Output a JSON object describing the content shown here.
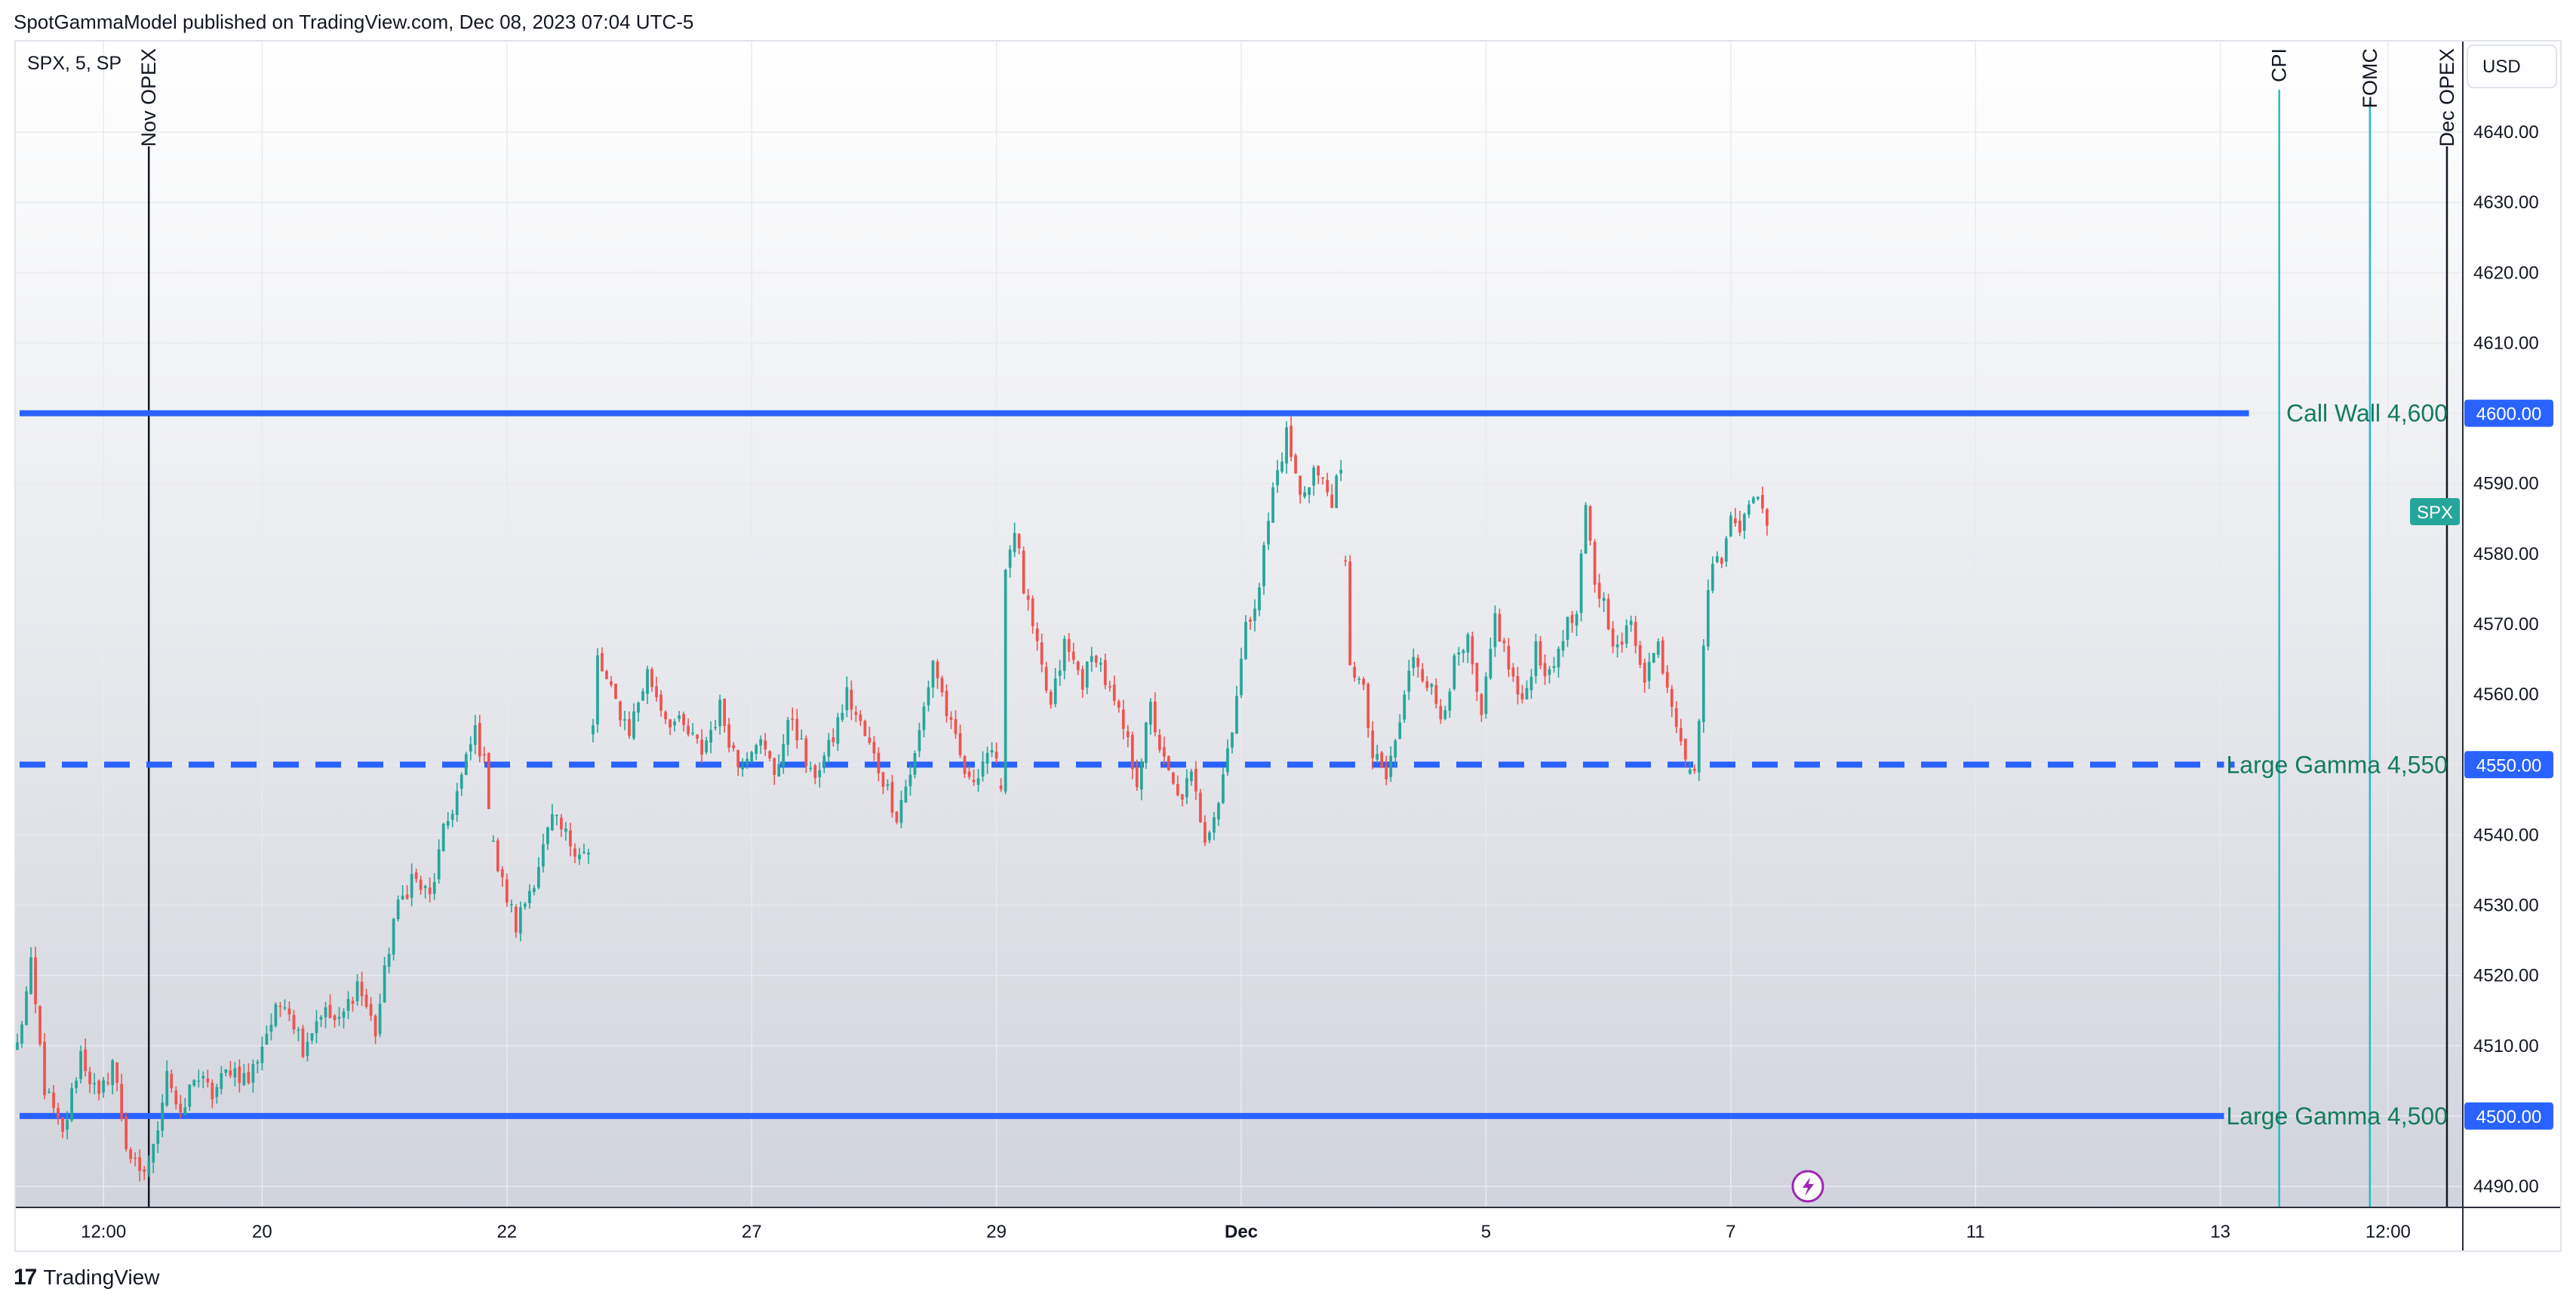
{
  "header": {
    "publisher_line": "SpotGammaModel published on TradingView.com, Dec 08, 2023 07:04 UTC-5"
  },
  "chart_info": {
    "symbol_line": "SPX, 5, SP",
    "currency": "USD",
    "symbol_badge": "SPX",
    "symbol_badge_color": "#26a69a"
  },
  "footer": {
    "logo_text": "17",
    "brand_text": "TradingView"
  },
  "colors": {
    "up_candle": "#26a69a",
    "down_candle": "#ef5350",
    "level_line": "#2962ff",
    "level_label_text": "#167a5e",
    "event_line_cyan": "#22bcc8",
    "event_line_black": "#131722",
    "gradient_top": "#ffffff",
    "gradient_bottom": "#d1d4dc"
  },
  "chart_data": {
    "type": "candlestick",
    "title": "",
    "ylim": [
      4487,
      4653
    ],
    "yticks": [
      4490,
      4500,
      4510,
      4520,
      4530,
      4540,
      4550,
      4560,
      4570,
      4580,
      4590,
      4600,
      4610,
      4620,
      4630,
      4640
    ],
    "grid": true,
    "x_tick_labels": [
      {
        "label": "12:00",
        "index": 19,
        "bold": false
      },
      {
        "label": "20",
        "index": 54,
        "bold": false
      },
      {
        "label": "22",
        "index": 108,
        "bold": false
      },
      {
        "label": "27",
        "index": 162,
        "bold": false
      },
      {
        "label": "29",
        "index": 216,
        "bold": false
      },
      {
        "label": "Dec",
        "index": 270,
        "bold": true
      },
      {
        "label": "5",
        "index": 324,
        "bold": false
      },
      {
        "label": "7",
        "index": 378,
        "bold": false
      },
      {
        "label": "11",
        "index": 432,
        "bold": false
      },
      {
        "label": "13",
        "index": 486,
        "bold": false
      },
      {
        "label": "12:00",
        "index": 523,
        "bold": false
      }
    ],
    "series": [
      {
        "name": "SPX",
        "anchors": [
          [
            0,
            4510
          ],
          [
            3,
            4521
          ],
          [
            6,
            4504
          ],
          [
            10,
            4497
          ],
          [
            14,
            4509
          ],
          [
            18,
            4502
          ],
          [
            21,
            4508
          ],
          [
            24,
            4496
          ],
          [
            27,
            4491
          ],
          [
            30,
            4495
          ],
          [
            33,
            4507
          ],
          [
            36,
            4499
          ],
          [
            39,
            4506
          ],
          [
            43,
            4503
          ],
          [
            47,
            4507
          ],
          [
            51,
            4505
          ],
          [
            55,
            4512
          ],
          [
            59,
            4517
          ],
          [
            63,
            4510
          ],
          [
            67,
            4515
          ],
          [
            71,
            4513
          ],
          [
            75,
            4519
          ],
          [
            79,
            4512
          ],
          [
            83,
            4528
          ],
          [
            87,
            4534
          ],
          [
            91,
            4531
          ],
          [
            94,
            4540
          ],
          [
            98,
            4548
          ],
          [
            101,
            4555
          ],
          [
            103,
            4550
          ],
          [
            106,
            4535
          ],
          [
            110,
            4527
          ],
          [
            114,
            4534
          ],
          [
            118,
            4542
          ],
          [
            122,
            4539
          ],
          [
            126,
            4537
          ],
          [
            127,
            4555
          ],
          [
            128,
            4565
          ],
          [
            131,
            4560
          ],
          [
            135,
            4555
          ],
          [
            139,
            4563
          ],
          [
            143,
            4557
          ],
          [
            147,
            4555
          ],
          [
            151,
            4552
          ],
          [
            155,
            4558
          ],
          [
            159,
            4550
          ],
          [
            163,
            4554
          ],
          [
            167,
            4549
          ],
          [
            171,
            4557
          ],
          [
            175,
            4548
          ],
          [
            179,
            4552
          ],
          [
            183,
            4560
          ],
          [
            187,
            4554
          ],
          [
            191,
            4548
          ],
          [
            194,
            4543
          ],
          [
            198,
            4551
          ],
          [
            202,
            4565
          ],
          [
            206,
            4555
          ],
          [
            210,
            4547
          ],
          [
            214,
            4552
          ],
          [
            217,
            4548
          ],
          [
            218,
            4578
          ],
          [
            220,
            4584
          ],
          [
            222,
            4575
          ],
          [
            225,
            4566
          ],
          [
            228,
            4558
          ],
          [
            231,
            4567
          ],
          [
            235,
            4562
          ],
          [
            238,
            4566
          ],
          [
            241,
            4560
          ],
          [
            244,
            4555
          ],
          [
            247,
            4548
          ],
          [
            250,
            4558
          ],
          [
            253,
            4550
          ],
          [
            256,
            4545
          ],
          [
            259,
            4548
          ],
          [
            262,
            4540
          ],
          [
            265,
            4545
          ],
          [
            268,
            4556
          ],
          [
            271,
            4569
          ],
          [
            274,
            4576
          ],
          [
            277,
            4589
          ],
          [
            280,
            4597
          ],
          [
            283,
            4588
          ],
          [
            286,
            4592
          ],
          [
            290,
            4588
          ],
          [
            292,
            4591
          ],
          [
            294,
            4565
          ],
          [
            297,
            4560
          ],
          [
            299,
            4551
          ],
          [
            302,
            4548
          ],
          [
            305,
            4556
          ],
          [
            308,
            4566
          ],
          [
            311,
            4562
          ],
          [
            314,
            4557
          ],
          [
            317,
            4564
          ],
          [
            320,
            4567
          ],
          [
            323,
            4556
          ],
          [
            326,
            4571
          ],
          [
            329,
            4564
          ],
          [
            332,
            4558
          ],
          [
            335,
            4567
          ],
          [
            338,
            4562
          ],
          [
            341,
            4569
          ],
          [
            344,
            4571
          ],
          [
            346,
            4586
          ],
          [
            348,
            4576
          ],
          [
            350,
            4573
          ],
          [
            353,
            4566
          ],
          [
            356,
            4570
          ],
          [
            359,
            4563
          ],
          [
            362,
            4567
          ],
          [
            365,
            4559
          ],
          [
            368,
            4552
          ],
          [
            370,
            4548
          ],
          [
            372,
            4567
          ],
          [
            374,
            4580
          ],
          [
            376,
            4578
          ],
          [
            378,
            4587
          ],
          [
            380,
            4584
          ],
          [
            382,
            4586
          ],
          [
            384,
            4589
          ],
          [
            386,
            4584
          ]
        ],
        "segment_breaks": [
          105,
          127,
          217,
          293,
          369
        ]
      }
    ],
    "levels": [
      {
        "label": "Call Wall 4,600",
        "value": 4600,
        "style": "solid",
        "price_tag": "4600.00"
      },
      {
        "label": "Large Gamma 4,550",
        "value": 4550,
        "style": "dashed",
        "price_tag": "4550.00"
      },
      {
        "label": "Large Gamma 4,500",
        "value": 4500,
        "style": "solid",
        "price_tag": "4500.00"
      }
    ],
    "events": [
      {
        "label": "Nov OPEX",
        "index": 29,
        "color": "black"
      },
      {
        "label": "CPI",
        "index": 499,
        "color": "cyan"
      },
      {
        "label": "FOMC",
        "index": 519,
        "color": "cyan"
      },
      {
        "label": "Dec OPEX",
        "index": 536,
        "color": "black"
      }
    ],
    "last_price": 4586,
    "annotations": [
      {
        "type": "lightning-marker",
        "index": 395,
        "value": 4490
      }
    ]
  }
}
